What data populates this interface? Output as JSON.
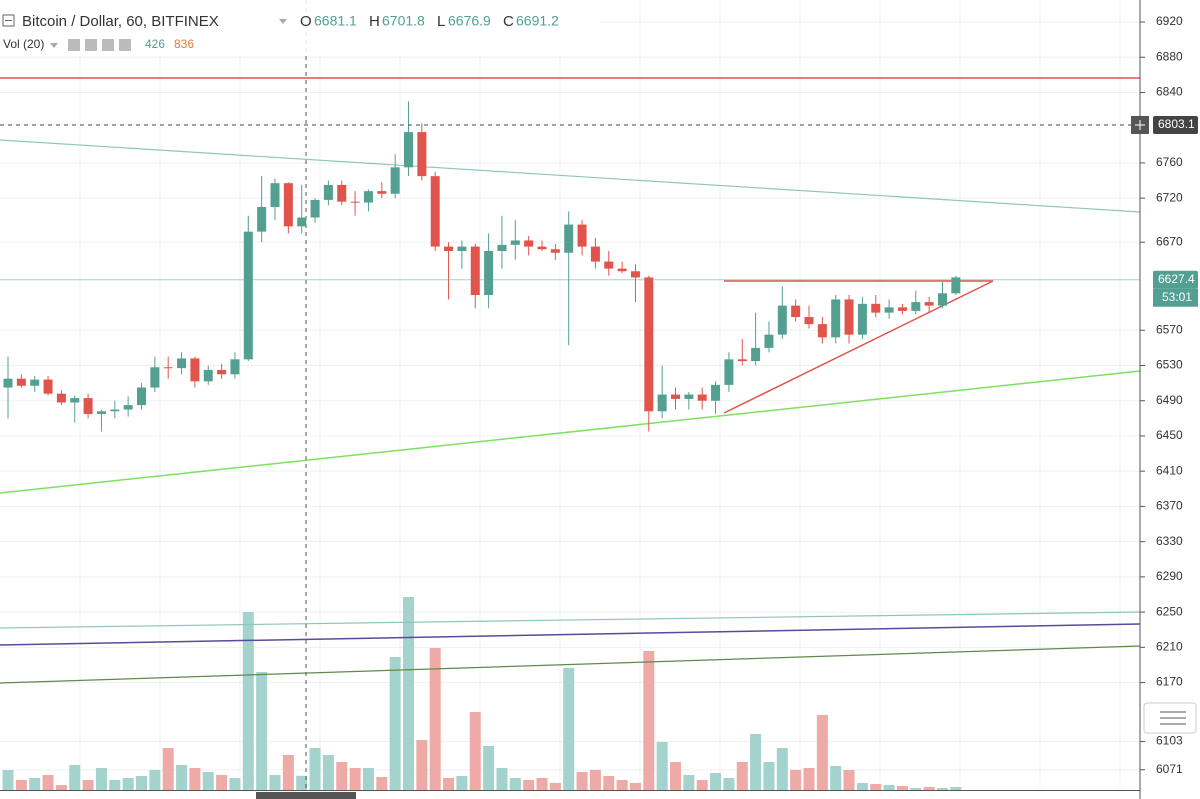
{
  "chart_data": {
    "type": "candlestick",
    "title": "Bitcoin / Dollar, 60, BITFINEX",
    "ohlc_labels": [
      "O",
      "H",
      "L",
      "C"
    ],
    "ohlc_values": [
      6681.1,
      6701.8,
      6676.9,
      6691.2
    ],
    "volume_title": "Vol (20)",
    "volume_values": [
      426,
      836
    ],
    "up_color": "#53a092",
    "down_color": "#e0544b",
    "volume_up_color": "#a3d3cc",
    "volume_down_color": "#eeaaa6",
    "ylim": [
      6945,
      6048
    ],
    "yticks": [
      6920,
      6880,
      6840,
      6760,
      6720,
      6670,
      6570,
      6530,
      6490,
      6450,
      6410,
      6370,
      6330,
      6290,
      6250,
      6210,
      6170,
      6103,
      6071
    ],
    "grid": true,
    "vlim": [
      0,
      6000
    ],
    "markers": [
      {
        "value": 6803.1,
        "color": "#444444"
      },
      {
        "value": 6627.4,
        "color": "#53a092",
        "countdown": "53:01"
      }
    ],
    "candles": [
      {
        "o": 6505,
        "h": 6540,
        "l": 6470,
        "c": 6515
      },
      {
        "o": 6515,
        "h": 6520,
        "l": 6505,
        "c": 6507
      },
      {
        "o": 6507,
        "h": 6518,
        "l": 6500,
        "c": 6514
      },
      {
        "o": 6514,
        "h": 6518,
        "l": 6496,
        "c": 6498
      },
      {
        "o": 6498,
        "h": 6502,
        "l": 6485,
        "c": 6488
      },
      {
        "o": 6488,
        "h": 6496,
        "l": 6465,
        "c": 6493
      },
      {
        "o": 6493,
        "h": 6498,
        "l": 6470,
        "c": 6475
      },
      {
        "o": 6475,
        "h": 6480,
        "l": 6455,
        "c": 6478
      },
      {
        "o": 6478,
        "h": 6490,
        "l": 6470,
        "c": 6480
      },
      {
        "o": 6480,
        "h": 6495,
        "l": 6472,
        "c": 6485
      },
      {
        "o": 6485,
        "h": 6510,
        "l": 6480,
        "c": 6505
      },
      {
        "o": 6505,
        "h": 6540,
        "l": 6500,
        "c": 6528
      },
      {
        "o": 6528,
        "h": 6540,
        "l": 6515,
        "c": 6527
      },
      {
        "o": 6527,
        "h": 6545,
        "l": 6520,
        "c": 6538
      },
      {
        "o": 6538,
        "h": 6540,
        "l": 6505,
        "c": 6512
      },
      {
        "o": 6512,
        "h": 6530,
        "l": 6508,
        "c": 6525
      },
      {
        "o": 6525,
        "h": 6532,
        "l": 6515,
        "c": 6520
      },
      {
        "o": 6520,
        "h": 6545,
        "l": 6515,
        "c": 6537
      },
      {
        "o": 6537,
        "h": 6700,
        "l": 6535,
        "c": 6682
      },
      {
        "o": 6682,
        "h": 6745,
        "l": 6670,
        "c": 6710
      },
      {
        "o": 6710,
        "h": 6742,
        "l": 6695,
        "c": 6737
      },
      {
        "o": 6737,
        "h": 6738,
        "l": 6680,
        "c": 6688
      },
      {
        "o": 6688,
        "h": 6735,
        "l": 6680,
        "c": 6698
      },
      {
        "o": 6698,
        "h": 6720,
        "l": 6692,
        "c": 6718
      },
      {
        "o": 6718,
        "h": 6740,
        "l": 6712,
        "c": 6735
      },
      {
        "o": 6735,
        "h": 6740,
        "l": 6712,
        "c": 6716
      },
      {
        "o": 6716,
        "h": 6728,
        "l": 6700,
        "c": 6715
      },
      {
        "o": 6715,
        "h": 6730,
        "l": 6705,
        "c": 6728
      },
      {
        "o": 6728,
        "h": 6738,
        "l": 6720,
        "c": 6725
      },
      {
        "o": 6725,
        "h": 6770,
        "l": 6720,
        "c": 6755
      },
      {
        "o": 6755,
        "h": 6830,
        "l": 6745,
        "c": 6795
      },
      {
        "o": 6795,
        "h": 6805,
        "l": 6740,
        "c": 6745
      },
      {
        "o": 6745,
        "h": 6750,
        "l": 6660,
        "c": 6665
      },
      {
        "o": 6665,
        "h": 6670,
        "l": 6605,
        "c": 6660
      },
      {
        "o": 6660,
        "h": 6672,
        "l": 6640,
        "c": 6665
      },
      {
        "o": 6665,
        "h": 6668,
        "l": 6595,
        "c": 6610
      },
      {
        "o": 6610,
        "h": 6680,
        "l": 6595,
        "c": 6660
      },
      {
        "o": 6660,
        "h": 6700,
        "l": 6640,
        "c": 6667
      },
      {
        "o": 6667,
        "h": 6695,
        "l": 6650,
        "c": 6672
      },
      {
        "o": 6672,
        "h": 6677,
        "l": 6655,
        "c": 6665
      },
      {
        "o": 6665,
        "h": 6672,
        "l": 6660,
        "c": 6662
      },
      {
        "o": 6662,
        "h": 6668,
        "l": 6650,
        "c": 6658
      },
      {
        "o": 6658,
        "h": 6705,
        "l": 6553,
        "c": 6690
      },
      {
        "o": 6690,
        "h": 6695,
        "l": 6655,
        "c": 6665
      },
      {
        "o": 6665,
        "h": 6675,
        "l": 6640,
        "c": 6648
      },
      {
        "o": 6648,
        "h": 6660,
        "l": 6632,
        "c": 6640
      },
      {
        "o": 6640,
        "h": 6648,
        "l": 6635,
        "c": 6637
      },
      {
        "o": 6637,
        "h": 6645,
        "l": 6602,
        "c": 6630
      },
      {
        "o": 6630,
        "h": 6632,
        "l": 6455,
        "c": 6478
      },
      {
        "o": 6478,
        "h": 6530,
        "l": 6470,
        "c": 6497
      },
      {
        "o": 6497,
        "h": 6505,
        "l": 6480,
        "c": 6492
      },
      {
        "o": 6492,
        "h": 6500,
        "l": 6480,
        "c": 6497
      },
      {
        "o": 6497,
        "h": 6505,
        "l": 6480,
        "c": 6490
      },
      {
        "o": 6490,
        "h": 6512,
        "l": 6475,
        "c": 6508
      },
      {
        "o": 6508,
        "h": 6545,
        "l": 6500,
        "c": 6537
      },
      {
        "o": 6537,
        "h": 6560,
        "l": 6530,
        "c": 6535
      },
      {
        "o": 6535,
        "h": 6590,
        "l": 6530,
        "c": 6550
      },
      {
        "o": 6550,
        "h": 6580,
        "l": 6545,
        "c": 6565
      },
      {
        "o": 6565,
        "h": 6620,
        "l": 6560,
        "c": 6598
      },
      {
        "o": 6598,
        "h": 6605,
        "l": 6580,
        "c": 6585
      },
      {
        "o": 6585,
        "h": 6598,
        "l": 6572,
        "c": 6577
      },
      {
        "o": 6577,
        "h": 6585,
        "l": 6555,
        "c": 6562
      },
      {
        "o": 6562,
        "h": 6610,
        "l": 6555,
        "c": 6605
      },
      {
        "o": 6605,
        "h": 6610,
        "l": 6555,
        "c": 6565
      },
      {
        "o": 6565,
        "h": 6608,
        "l": 6560,
        "c": 6600
      },
      {
        "o": 6600,
        "h": 6610,
        "l": 6585,
        "c": 6590
      },
      {
        "o": 6590,
        "h": 6605,
        "l": 6583,
        "c": 6596
      },
      {
        "o": 6596,
        "h": 6600,
        "l": 6588,
        "c": 6592
      },
      {
        "o": 6592,
        "h": 6615,
        "l": 6588,
        "c": 6602
      },
      {
        "o": 6602,
        "h": 6608,
        "l": 6590,
        "c": 6598
      },
      {
        "o": 6598,
        "h": 6625,
        "l": 6595,
        "c": 6612
      },
      {
        "o": 6612,
        "h": 6632,
        "l": 6610,
        "c": 6630
      }
    ],
    "volume": [
      600,
      300,
      360,
      450,
      150,
      750,
      300,
      660,
      300,
      360,
      420,
      600,
      1260,
      750,
      660,
      540,
      450,
      360,
      5340,
      3540,
      450,
      1050,
      426,
      1260,
      1050,
      840,
      660,
      660,
      390,
      3990,
      5790,
      1500,
      4260,
      360,
      420,
      2340,
      1320,
      660,
      360,
      300,
      360,
      210,
      3660,
      540,
      600,
      420,
      300,
      210,
      4170,
      1440,
      840,
      450,
      300,
      510,
      360,
      840,
      1680,
      840,
      1260,
      600,
      660,
      2250,
      720,
      600,
      210,
      180,
      150,
      120,
      60,
      90,
      60,
      90
    ]
  }
}
